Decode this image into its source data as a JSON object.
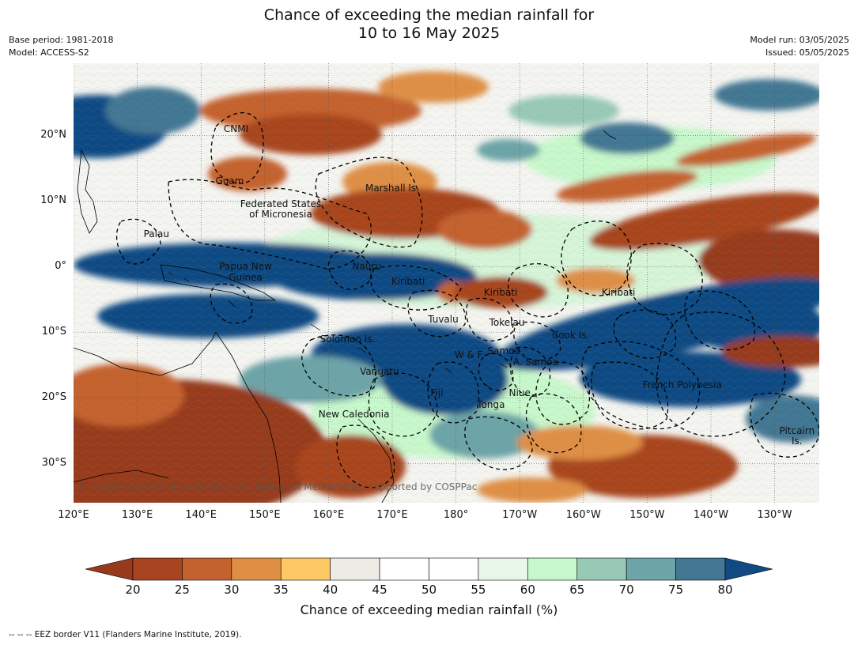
{
  "title": {
    "line1": "Chance of exceeding the median rainfall for",
    "line2": "10 to 16 May 2025"
  },
  "meta": {
    "base_period": "Base period: 1981-2018",
    "model": "Model: ACCESS-S2",
    "model_run": "Model run: 03/05/2025",
    "issued": "Issued: 05/05/2025"
  },
  "map": {
    "lon_range": [
      120,
      237
    ],
    "lat_range": [
      -36,
      31
    ],
    "lat_ticks": [
      "20°N",
      "10°N",
      "0°",
      "10°S",
      "20°S",
      "30°S"
    ],
    "lon_ticks": [
      "120°E",
      "130°E",
      "140°E",
      "150°E",
      "160°E",
      "170°E",
      "180°",
      "170°W",
      "160°W",
      "150°W",
      "140°W",
      "130°W"
    ],
    "region_labels": [
      {
        "text": "CNMI",
        "lon": 145.5,
        "lat": 21
      },
      {
        "text": "Guam",
        "lon": 144.5,
        "lat": 13
      },
      {
        "text": "Marshall Is.",
        "lon": 170,
        "lat": 12
      },
      {
        "text": "Federated States",
        "lon": 152.5,
        "lat": 9.5
      },
      {
        "text": "of Micronesia",
        "lon": 152.5,
        "lat": 8
      },
      {
        "text": "Palau",
        "lon": 133,
        "lat": 5
      },
      {
        "text": "Papua New",
        "lon": 147,
        "lat": 0
      },
      {
        "text": "Guinea",
        "lon": 147,
        "lat": -1.6
      },
      {
        "text": "Nauru",
        "lon": 166,
        "lat": 0
      },
      {
        "text": "Kiribati",
        "lon": 172.5,
        "lat": -2.3
      },
      {
        "text": "Kiribati",
        "lon": 187,
        "lat": -4
      },
      {
        "text": "Kiribati",
        "lon": 205.5,
        "lat": -4
      },
      {
        "text": "Tuvalu",
        "lon": 178,
        "lat": -8
      },
      {
        "text": "Tokelau",
        "lon": 188,
        "lat": -8.5
      },
      {
        "text": "Cook Is.",
        "lon": 198,
        "lat": -10.5
      },
      {
        "text": "Solomon Is.",
        "lon": 163,
        "lat": -11
      },
      {
        "text": "W & F",
        "lon": 182,
        "lat": -13.5
      },
      {
        "text": "Samoa",
        "lon": 187.5,
        "lat": -12.9
      },
      {
        "text": "A. Samoa",
        "lon": 192.5,
        "lat": -14.5
      },
      {
        "text": "Vanuatu",
        "lon": 168,
        "lat": -16
      },
      {
        "text": "Fiji",
        "lon": 177,
        "lat": -19.2
      },
      {
        "text": "Niue",
        "lon": 190,
        "lat": -19.2
      },
      {
        "text": "French Polynesia",
        "lon": 215.5,
        "lat": -18
      },
      {
        "text": "Tonga",
        "lon": 185.5,
        "lat": -21
      },
      {
        "text": "New Caledonia",
        "lon": 164,
        "lat": -22.5
      },
      {
        "text": "Pitcairn",
        "lon": 233.5,
        "lat": -25
      },
      {
        "text": "Is.",
        "lon": 233.5,
        "lat": -26.6
      }
    ],
    "copyright": "© Commonwealth of Australia 2025, Bureau of Meteorology, supported by COSPPac"
  },
  "colorbar": {
    "ticks": [
      "20",
      "25",
      "30",
      "35",
      "40",
      "45",
      "50",
      "55",
      "60",
      "65",
      "70",
      "75",
      "80"
    ],
    "under_color": "#973a1c",
    "over_color": "#114a83",
    "colors": [
      "#a8441f",
      "#c4622f",
      "#df8f44",
      "#fcc964",
      "#ecebe6",
      "#ffffff",
      "#ffffff",
      "#e8f6e9",
      "#c7f8cb",
      "#97c9b5",
      "#6ca4a7",
      "#437793"
    ],
    "label": "Chance of exceeding median rainfall (%)"
  },
  "footer": "--  --  -- EEZ border V11 (Flanders Marine Institute, 2019)."
}
